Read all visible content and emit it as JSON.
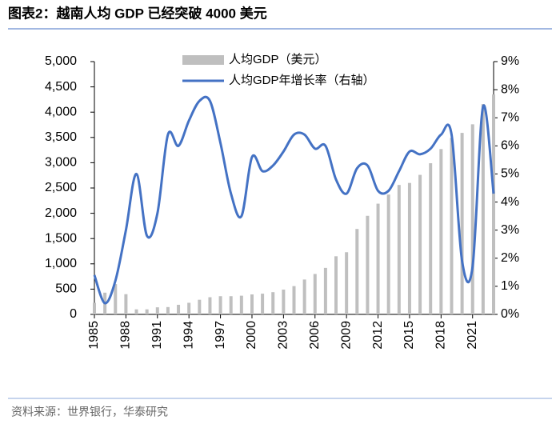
{
  "chart_data": {
    "type": "bar",
    "title": "图表2：越南人均 GDP 已经突破 4000 美元",
    "source": "资料来源：世界银行，华泰研究",
    "categories": [
      "1985",
      null,
      null,
      "1988",
      null,
      null,
      "1991",
      null,
      null,
      "1994",
      null,
      null,
      "1997",
      null,
      null,
      "2000",
      null,
      null,
      "2003",
      null,
      null,
      "2006",
      null,
      null,
      "2009",
      null,
      null,
      "2012",
      null,
      null,
      "2015",
      null,
      null,
      "2018",
      null,
      null,
      "2021",
      null,
      null
    ],
    "series": [
      {
        "name": "人均GDP（美元）",
        "type": "bar",
        "color": "#bfbfbf",
        "values": [
          230,
          430,
          600,
          400,
          100,
          100,
          140,
          145,
          190,
          230,
          290,
          340,
          360,
          360,
          370,
          395,
          410,
          440,
          490,
          560,
          690,
          800,
          920,
          1150,
          1230,
          1690,
          1950,
          2190,
          2370,
          2560,
          2600,
          2760,
          2990,
          3270,
          3490,
          3590,
          3760,
          4160,
          4350
        ]
      },
      {
        "name": "人均GDP年增长率（右轴）",
        "type": "line",
        "color": "#4472c4",
        "axis": "y2",
        "values": [
          1.4,
          0.4,
          1.2,
          3.0,
          5.0,
          2.8,
          3.6,
          6.4,
          6.0,
          6.9,
          7.6,
          7.6,
          6.1,
          4.3,
          3.5,
          5.6,
          5.1,
          5.3,
          5.8,
          6.4,
          6.4,
          5.9,
          6.0,
          4.8,
          4.3,
          5.2,
          5.3,
          4.4,
          4.4,
          5.1,
          5.8,
          5.7,
          5.9,
          6.4,
          6.4,
          1.9,
          1.7,
          7.4,
          4.3
        ]
      }
    ],
    "ylim": [
      0,
      5000
    ],
    "yticks": [
      0,
      500,
      {
        "value": 1000,
        "label": "1,000"
      },
      {
        "value": 1500,
        "label": "1,500"
      },
      {
        "value": 2000,
        "label": "2,000"
      },
      {
        "value": 2500,
        "label": "2,500"
      },
      {
        "value": 3000,
        "label": "3,000"
      },
      {
        "value": 3500,
        "label": "3,500"
      },
      {
        "value": 4000,
        "label": "4,000"
      },
      {
        "value": 4500,
        "label": "4,500"
      },
      {
        "value": 5000,
        "label": "5,000"
      }
    ],
    "y2lim": [
      0,
      9
    ],
    "y2ticks": [
      {
        "value": 0,
        "label": "0%"
      },
      {
        "value": 1,
        "label": "1%"
      },
      {
        "value": 2,
        "label": "2%"
      },
      {
        "value": 3,
        "label": "3%"
      },
      {
        "value": 4,
        "label": "4%"
      },
      {
        "value": 5,
        "label": "5%"
      },
      {
        "value": 6,
        "label": "6%"
      },
      {
        "value": 7,
        "label": "7%"
      },
      {
        "value": 8,
        "label": "8%"
      },
      {
        "value": 9,
        "label": "9%"
      }
    ],
    "legend": "top"
  }
}
